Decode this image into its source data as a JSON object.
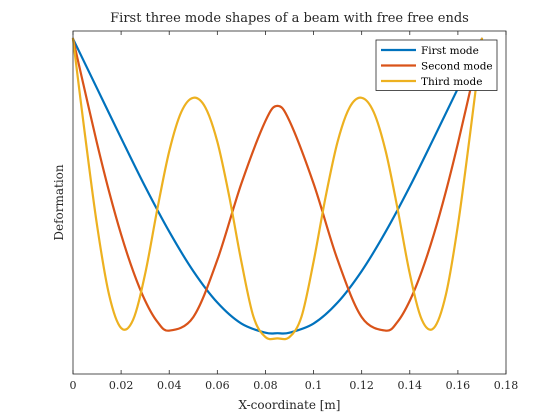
{
  "chart_data": {
    "type": "line",
    "title": "First three mode shapes of a beam with free free ends",
    "xlabel": "X-coordinate [m]",
    "ylabel": "Deformation",
    "xlim": [
      0,
      0.18
    ],
    "ylim": [
      -0.29,
      1.03
    ],
    "xticks": [
      "0",
      "0.02",
      "0.04",
      "0.06",
      "0.08",
      "0.1",
      "0.12",
      "0.14",
      "0.16",
      "0.18"
    ],
    "grid": false,
    "legend_position": "top-right",
    "series": [
      {
        "name": "First mode",
        "color": "#0072BD",
        "x": [
          0.0,
          0.01,
          0.02,
          0.03,
          0.04,
          0.05,
          0.06,
          0.07,
          0.08,
          0.085,
          0.09,
          0.1,
          0.11,
          0.12,
          0.13,
          0.14,
          0.15,
          0.16,
          0.17
        ],
        "y": [
          1.0,
          0.809,
          0.618,
          0.431,
          0.258,
          0.106,
          -0.015,
          -0.096,
          -0.131,
          -0.133,
          -0.131,
          -0.096,
          -0.015,
          0.106,
          0.258,
          0.431,
          0.618,
          0.809,
          1.0
        ]
      },
      {
        "name": "Second mode",
        "color": "#D95319",
        "x": [
          0.0,
          0.005,
          0.01,
          0.015,
          0.02,
          0.025,
          0.03,
          0.035,
          0.04,
          0.05,
          0.06,
          0.07,
          0.08,
          0.085,
          0.09,
          0.1,
          0.11,
          0.12,
          0.13,
          0.135,
          0.14,
          0.145,
          0.15,
          0.155,
          0.16,
          0.165,
          0.17
        ],
        "y": [
          1.0,
          0.797,
          0.597,
          0.412,
          0.247,
          0.106,
          -0.008,
          -0.088,
          -0.123,
          -0.071,
          0.149,
          0.443,
          0.684,
          0.742,
          0.684,
          0.443,
          0.149,
          -0.071,
          -0.123,
          -0.088,
          -0.008,
          0.106,
          0.247,
          0.412,
          0.597,
          0.797,
          1.0
        ]
      },
      {
        "name": "Third mode",
        "color": "#EDB120",
        "x": [
          0.0,
          0.005,
          0.01,
          0.015,
          0.02,
          0.025,
          0.03,
          0.035,
          0.04,
          0.045,
          0.05,
          0.055,
          0.06,
          0.065,
          0.07,
          0.075,
          0.08,
          0.085,
          0.09,
          0.095,
          0.1,
          0.105,
          0.11,
          0.115,
          0.12,
          0.125,
          0.13,
          0.135,
          0.14,
          0.145,
          0.15,
          0.155,
          0.16,
          0.165,
          0.17
        ],
        "y": [
          1.0,
          0.629,
          0.282,
          0.015,
          -0.113,
          -0.081,
          0.096,
          0.342,
          0.567,
          0.718,
          0.773,
          0.736,
          0.604,
          0.391,
          0.142,
          -0.069,
          -0.148,
          -0.153,
          -0.148,
          -0.069,
          0.142,
          0.391,
          0.604,
          0.736,
          0.773,
          0.718,
          0.567,
          0.342,
          0.096,
          -0.081,
          -0.113,
          0.015,
          0.282,
          0.629,
          1.0
        ]
      }
    ]
  }
}
